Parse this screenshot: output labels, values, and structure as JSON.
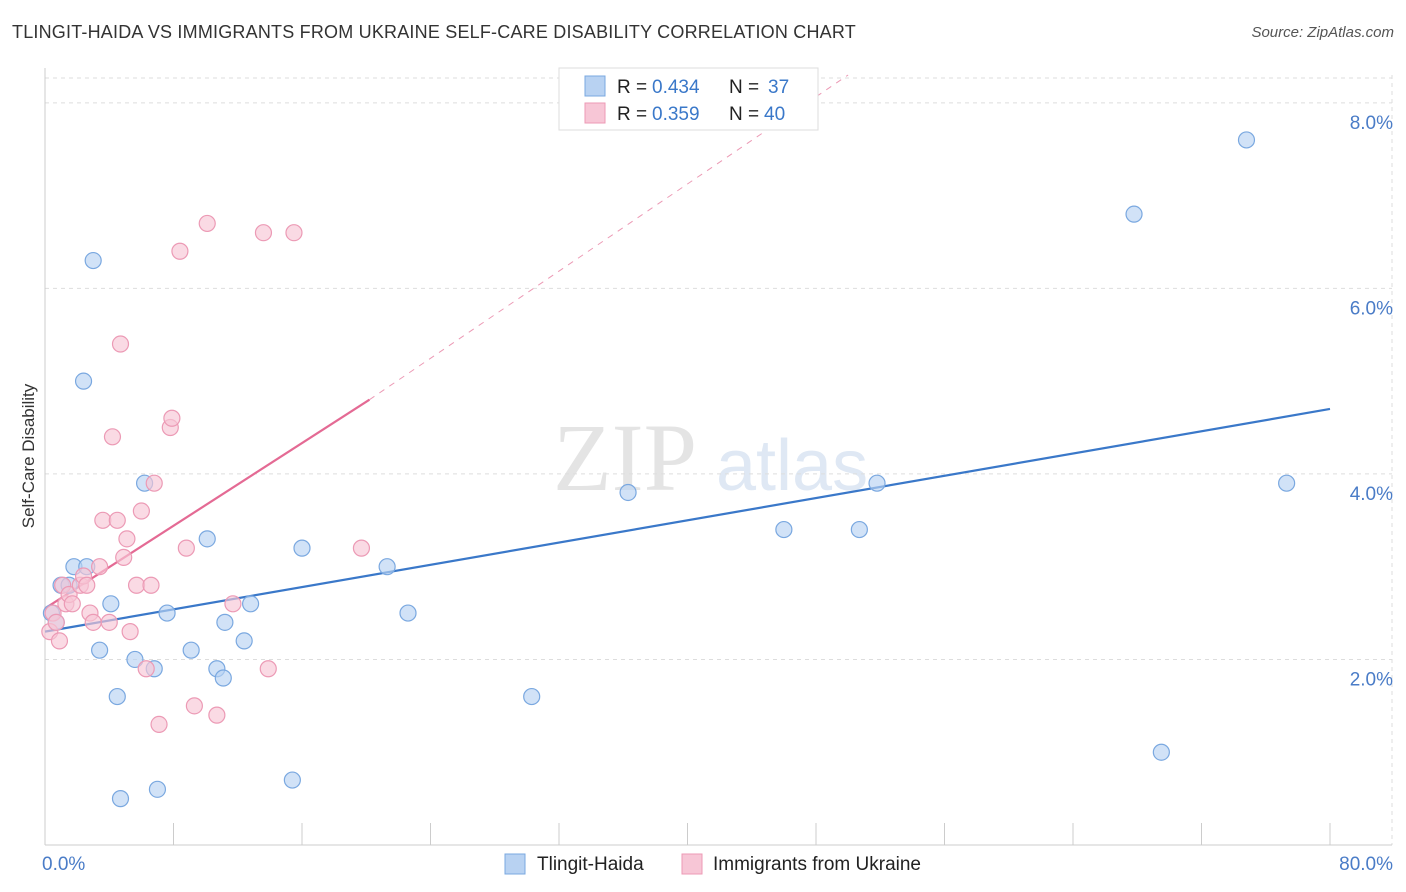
{
  "title": "TLINGIT-HAIDA VS IMMIGRANTS FROM UKRAINE SELF-CARE DISABILITY CORRELATION CHART",
  "source": "Source: ZipAtlas.com",
  "watermark": {
    "zip": "ZIP",
    "atlas": "atlas"
  },
  "colors": {
    "blue_fill": "#b8d2f2",
    "blue_stroke": "#7aa8e0",
    "blue_line": "#3a78c9",
    "pink_fill": "#f7c6d6",
    "pink_stroke": "#ec9ab5",
    "pink_line": "#e46a94",
    "tick_text": "#4a7cc7",
    "grid": "#dddddd"
  },
  "legend": {
    "rows": [
      {
        "r_label": "R =",
        "r_value": "0.434",
        "n_label": "N =",
        "n_value": "37"
      },
      {
        "r_label": "R =",
        "r_value": "0.359",
        "n_label": "N =",
        "n_value": "40"
      }
    ]
  },
  "chart_data": {
    "type": "scatter",
    "xlabel": "",
    "ylabel": "Self-Care Disability",
    "xlim": [
      0,
      80
    ],
    "ylim": [
      0,
      8.3
    ],
    "x_tick_labels": [
      "0.0%",
      "80.0%"
    ],
    "y_ticks": [
      2,
      4,
      6,
      8
    ],
    "y_tick_labels": [
      "2.0%",
      "4.0%",
      "6.0%",
      "8.0%"
    ],
    "grid": true,
    "legend_position": "top-center",
    "series": [
      {
        "name": "Tlingit-Haida",
        "color": "#b8d2f2",
        "points": [
          [
            0.4,
            2.5
          ],
          [
            0.7,
            2.4
          ],
          [
            1.0,
            2.8
          ],
          [
            1.5,
            2.8
          ],
          [
            1.8,
            3.0
          ],
          [
            2.4,
            5.0
          ],
          [
            2.6,
            3.0
          ],
          [
            3.0,
            6.3
          ],
          [
            3.4,
            2.1
          ],
          [
            4.1,
            2.6
          ],
          [
            4.5,
            1.6
          ],
          [
            4.7,
            0.5
          ],
          [
            5.6,
            2.0
          ],
          [
            6.2,
            3.9
          ],
          [
            6.8,
            1.9
          ],
          [
            7.0,
            0.6
          ],
          [
            7.6,
            2.5
          ],
          [
            9.1,
            2.1
          ],
          [
            10.1,
            3.3
          ],
          [
            10.7,
            1.9
          ],
          [
            11.1,
            1.8
          ],
          [
            11.2,
            2.4
          ],
          [
            12.4,
            2.2
          ],
          [
            12.8,
            2.6
          ],
          [
            15.4,
            0.7
          ],
          [
            16.0,
            3.2
          ],
          [
            21.3,
            3.0
          ],
          [
            22.6,
            2.5
          ],
          [
            30.3,
            1.6
          ],
          [
            36.3,
            3.8
          ],
          [
            46.0,
            3.4
          ],
          [
            50.7,
            3.4
          ],
          [
            51.8,
            3.9
          ],
          [
            67.8,
            6.8
          ],
          [
            69.5,
            1.0
          ],
          [
            74.8,
            7.6
          ],
          [
            77.3,
            3.9
          ]
        ],
        "trend": {
          "x": [
            0,
            80
          ],
          "y": [
            2.3,
            4.7
          ],
          "style": "solid"
        }
      },
      {
        "name": "Immigrants from Ukraine",
        "color": "#f7c6d6",
        "points": [
          [
            0.3,
            2.3
          ],
          [
            0.5,
            2.5
          ],
          [
            0.7,
            2.4
          ],
          [
            0.9,
            2.2
          ],
          [
            1.1,
            2.8
          ],
          [
            1.3,
            2.6
          ],
          [
            1.5,
            2.7
          ],
          [
            1.7,
            2.6
          ],
          [
            2.2,
            2.8
          ],
          [
            2.4,
            2.9
          ],
          [
            2.6,
            2.8
          ],
          [
            2.8,
            2.5
          ],
          [
            3.0,
            2.4
          ],
          [
            3.4,
            3.0
          ],
          [
            3.6,
            3.5
          ],
          [
            4.0,
            2.4
          ],
          [
            4.2,
            4.4
          ],
          [
            4.5,
            3.5
          ],
          [
            4.7,
            5.4
          ],
          [
            4.9,
            3.1
          ],
          [
            5.1,
            3.3
          ],
          [
            5.3,
            2.3
          ],
          [
            5.7,
            2.8
          ],
          [
            6.0,
            3.6
          ],
          [
            6.3,
            1.9
          ],
          [
            6.6,
            2.8
          ],
          [
            6.8,
            3.9
          ],
          [
            7.1,
            1.3
          ],
          [
            7.8,
            4.5
          ],
          [
            7.9,
            4.6
          ],
          [
            8.4,
            6.4
          ],
          [
            8.8,
            3.2
          ],
          [
            9.3,
            1.5
          ],
          [
            10.1,
            6.7
          ],
          [
            10.7,
            1.4
          ],
          [
            11.7,
            2.6
          ],
          [
            13.6,
            6.6
          ],
          [
            13.9,
            1.9
          ],
          [
            15.5,
            6.6
          ],
          [
            19.7,
            3.2
          ]
        ],
        "trend": {
          "x": [
            0,
            20.2
          ],
          "y": [
            2.55,
            4.8
          ],
          "style": "solid"
        },
        "trend_extension": {
          "x": [
            20.2,
            50
          ],
          "y": [
            4.8,
            8.3
          ],
          "style": "dashed"
        }
      }
    ]
  },
  "bottom_legend": {
    "items": [
      {
        "label": "Tlingit-Haida"
      },
      {
        "label": "Immigrants from Ukraine"
      }
    ]
  }
}
